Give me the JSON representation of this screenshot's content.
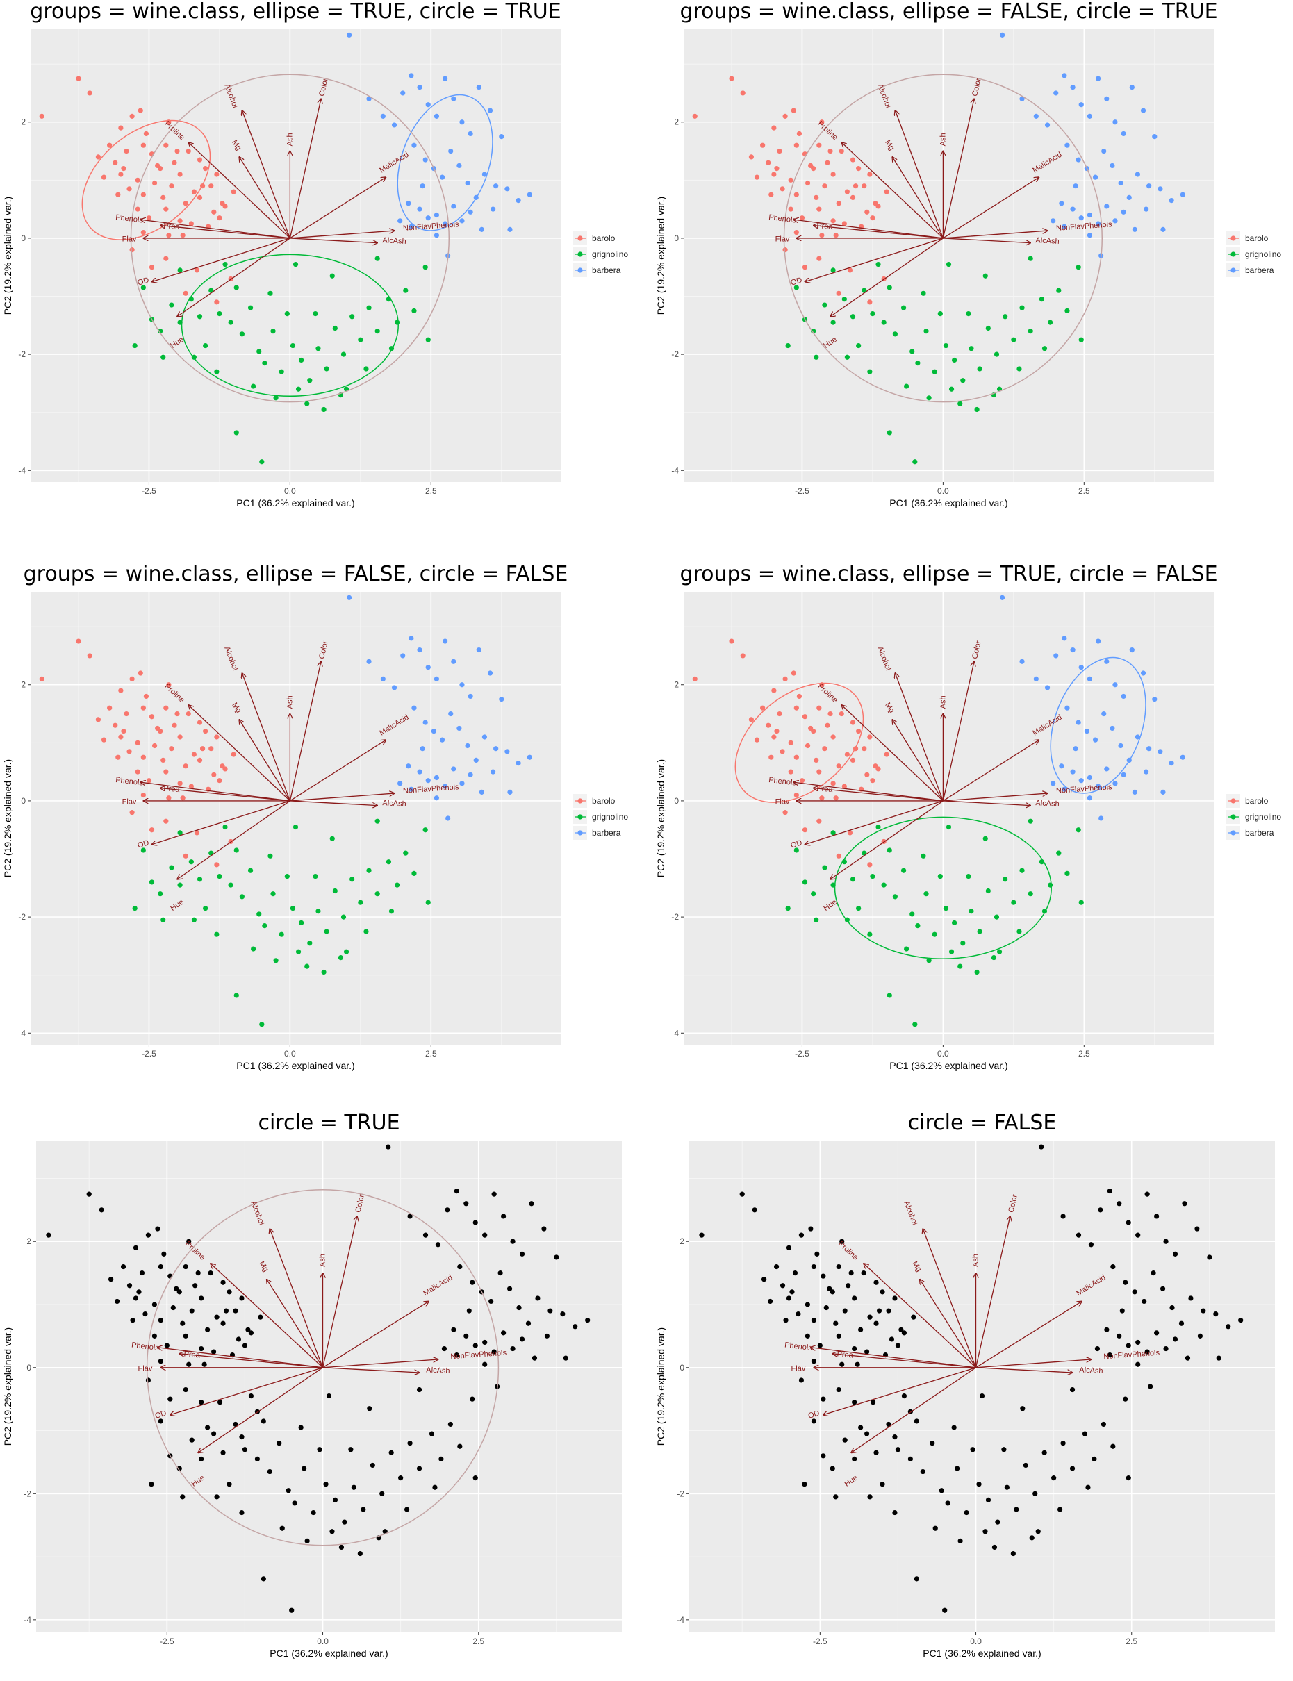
{
  "chart_data": [
    {
      "type": "scatter",
      "title": "groups = wine.class, ellipse = TRUE, circle = TRUE",
      "groups": true,
      "ellipse": true,
      "circle": true
    },
    {
      "type": "scatter",
      "title": "groups = wine.class, ellipse = FALSE, circle = TRUE",
      "groups": true,
      "ellipse": false,
      "circle": true
    },
    {
      "type": "scatter",
      "title": "groups = wine.class, ellipse = FALSE, circle = FALSE",
      "groups": true,
      "ellipse": false,
      "circle": false
    },
    {
      "type": "scatter",
      "title": "groups = wine.class, ellipse = TRUE, circle = FALSE",
      "groups": true,
      "ellipse": true,
      "circle": false
    },
    {
      "type": "scatter",
      "title": "circle = TRUE",
      "groups": false,
      "ellipse": false,
      "circle": true
    },
    {
      "type": "scatter",
      "title": "circle = FALSE",
      "groups": false,
      "ellipse": false,
      "circle": false
    }
  ],
  "shared": {
    "xlabel": "PC1 (36.2% explained var.)",
    "ylabel": "PC2 (19.2% explained var.)",
    "xlim": [
      -4.6,
      4.8
    ],
    "ylim": [
      -4.2,
      3.6
    ],
    "xticks": [
      -2.5,
      0.0,
      2.5
    ],
    "xtick_labels": [
      "-2.5",
      "0.0",
      "2.5"
    ],
    "yticks": [
      2,
      0,
      -2,
      -4
    ],
    "ytick_labels": [
      "2",
      "0",
      "-2",
      "-4"
    ],
    "grid": true,
    "legend": [
      "barolo",
      "grignolino",
      "barbera"
    ],
    "colors": {
      "barolo": "#f8766d",
      "grignolino": "#00ba38",
      "barbera": "#619cff",
      "nogroup": "#000000",
      "arrow": "#8b1a1a",
      "circle": "#c4a5a5",
      "panel_bg": "#ebebeb",
      "grid": "#ffffff"
    },
    "circle_radius": 2.82,
    "vectors": [
      {
        "name": "Alcohol",
        "x": -0.85,
        "y": 2.2,
        "lx": -1.05,
        "ly": 2.45
      },
      {
        "name": "Color",
        "x": 0.55,
        "y": 2.4,
        "lx": 0.6,
        "ly": 2.6
      },
      {
        "name": "Proline",
        "x": -1.8,
        "y": 1.65,
        "lx": -2.05,
        "ly": 1.85
      },
      {
        "name": "Mg",
        "x": -0.9,
        "y": 1.4,
        "lx": -0.95,
        "ly": 1.6
      },
      {
        "name": "Ash",
        "x": 0.0,
        "y": 1.5,
        "lx": 0.0,
        "ly": 1.7
      },
      {
        "name": "MalicAcid",
        "x": 1.7,
        "y": 1.05,
        "lx": 1.85,
        "ly": 1.3
      },
      {
        "name": "NonFlavPhenols",
        "x": 1.85,
        "y": 0.13,
        "lx": 2.5,
        "ly": 0.2
      },
      {
        "name": "AlcAsh",
        "x": 1.55,
        "y": -0.08,
        "lx": 1.85,
        "ly": -0.05
      },
      {
        "name": "Proa",
        "x": -2.3,
        "y": 0.22,
        "lx": -2.1,
        "ly": 0.2
      },
      {
        "name": "Phenols",
        "x": -2.65,
        "y": 0.32,
        "lx": -2.85,
        "ly": 0.33
      },
      {
        "name": "Flav",
        "x": -2.6,
        "y": 0.0,
        "lx": -2.85,
        "ly": -0.02
      },
      {
        "name": "OD",
        "x": -2.45,
        "y": -0.75,
        "lx": -2.6,
        "ly": -0.75
      },
      {
        "name": "Hue",
        "x": -2.0,
        "y": -1.35,
        "lx": -2.0,
        "ly": -1.8
      }
    ],
    "ellipses": [
      {
        "group": "barolo",
        "cx": -2.55,
        "cy": 1.0,
        "rx": 1.3,
        "ry": 0.82,
        "angle": -40
      },
      {
        "group": "grignolino",
        "cx": 0.0,
        "cy": -1.5,
        "rx": 1.92,
        "ry": 1.22,
        "angle": 0
      },
      {
        "group": "barbera",
        "cx": 2.75,
        "cy": 1.3,
        "rx": 1.25,
        "ry": 0.75,
        "angle": -70
      }
    ],
    "points": {
      "barolo": [
        [
          -4.4,
          2.1
        ],
        [
          -3.75,
          2.75
        ],
        [
          -3.55,
          2.5
        ],
        [
          -3.2,
          1.6
        ],
        [
          -3.1,
          1.3
        ],
        [
          -3.0,
          1.1
        ],
        [
          -2.9,
          1.5
        ],
        [
          -2.8,
          2.1
        ],
        [
          -2.6,
          1.6
        ],
        [
          -2.55,
          1.8
        ],
        [
          -2.45,
          1.45
        ],
        [
          -2.3,
          1.2
        ],
        [
          -2.2,
          1.6
        ],
        [
          -2.15,
          2.0
        ],
        [
          -2.05,
          1.3
        ],
        [
          -1.95,
          1.1
        ],
        [
          -1.8,
          1.5
        ],
        [
          -1.7,
          0.8
        ],
        [
          -1.6,
          1.35
        ],
        [
          -1.5,
          1.2
        ],
        [
          -1.4,
          0.9
        ],
        [
          -1.3,
          1.1
        ],
        [
          -1.15,
          0.55
        ],
        [
          -1.0,
          0.8
        ],
        [
          -3.3,
          1.05
        ],
        [
          -3.05,
          0.75
        ],
        [
          -2.85,
          0.85
        ],
        [
          -2.6,
          0.75
        ],
        [
          -2.4,
          0.95
        ],
        [
          -2.25,
          0.7
        ],
        [
          -2.1,
          0.9
        ],
        [
          -1.85,
          0.6
        ],
        [
          -1.6,
          0.7
        ],
        [
          -1.35,
          0.45
        ],
        [
          -2.7,
          0.5
        ],
        [
          -2.5,
          0.35
        ],
        [
          -2.2,
          0.5
        ],
        [
          -1.95,
          0.3
        ],
        [
          -1.75,
          0.25
        ],
        [
          -1.45,
          0.2
        ],
        [
          -3.4,
          1.4
        ],
        [
          -2.95,
          1.2
        ],
        [
          -2.7,
          1.0
        ],
        [
          -2.35,
          1.25
        ],
        [
          -2.0,
          1.5
        ],
        [
          -1.55,
          0.9
        ],
        [
          -1.9,
          0.05
        ],
        [
          -2.15,
          0.05
        ],
        [
          -2.6,
          0.1
        ],
        [
          -1.25,
          0.35
        ],
        [
          -2.8,
          -0.2
        ],
        [
          -2.2,
          -0.35
        ],
        [
          -1.65,
          -0.55
        ],
        [
          -1.05,
          -0.7
        ],
        [
          -1.3,
          -1.1
        ],
        [
          -1.85,
          -0.95
        ],
        [
          -2.45,
          -0.5
        ],
        [
          -3.0,
          1.9
        ],
        [
          -2.65,
          2.2
        ],
        [
          -1.2,
          0.6
        ]
      ],
      "grignolino": [
        [
          -2.75,
          -1.85
        ],
        [
          -2.45,
          -1.4
        ],
        [
          -2.3,
          -1.6
        ],
        [
          -2.1,
          -1.15
        ],
        [
          -1.95,
          -1.45
        ],
        [
          -1.75,
          -1.05
        ],
        [
          -1.6,
          -1.35
        ],
        [
          -1.4,
          -0.9
        ],
        [
          -1.25,
          -1.3
        ],
        [
          -1.05,
          -1.45
        ],
        [
          -0.95,
          -0.85
        ],
        [
          -0.85,
          -1.65
        ],
        [
          -0.7,
          -1.2
        ],
        [
          -0.55,
          -1.95
        ],
        [
          -0.45,
          -2.15
        ],
        [
          -0.3,
          -1.6
        ],
        [
          -0.15,
          -2.3
        ],
        [
          0.05,
          -1.85
        ],
        [
          0.2,
          -2.1
        ],
        [
          0.35,
          -2.45
        ],
        [
          0.5,
          -1.9
        ],
        [
          0.65,
          -2.25
        ],
        [
          0.8,
          -1.55
        ],
        [
          0.95,
          -2.0
        ],
        [
          1.1,
          -1.35
        ],
        [
          1.25,
          -1.75
        ],
        [
          1.4,
          -1.2
        ],
        [
          1.55,
          -1.6
        ],
        [
          1.75,
          -1.05
        ],
        [
          1.9,
          -1.45
        ],
        [
          2.05,
          -0.9
        ],
        [
          2.2,
          -1.25
        ],
        [
          2.45,
          -1.75
        ],
        [
          -0.65,
          -2.55
        ],
        [
          -0.25,
          -2.75
        ],
        [
          0.3,
          -2.85
        ],
        [
          0.9,
          -2.7
        ],
        [
          -1.3,
          -2.3
        ],
        [
          -1.7,
          -2.05
        ],
        [
          -0.95,
          -3.35
        ],
        [
          -0.5,
          -3.85
        ],
        [
          0.15,
          -2.6
        ],
        [
          0.6,
          -2.95
        ],
        [
          1.0,
          -2.6
        ],
        [
          -2.25,
          -2.05
        ],
        [
          -1.5,
          -1.85
        ],
        [
          -0.05,
          -1.3
        ],
        [
          0.45,
          -1.3
        ],
        [
          1.35,
          -2.25
        ],
        [
          1.8,
          -1.9
        ],
        [
          -0.35,
          -0.95
        ],
        [
          0.75,
          -0.65
        ],
        [
          -1.95,
          -0.55
        ],
        [
          -2.6,
          -0.85
        ],
        [
          1.55,
          -0.35
        ],
        [
          2.4,
          -0.5
        ],
        [
          -1.15,
          -0.45
        ],
        [
          0.1,
          -0.45
        ]
      ],
      "barbera": [
        [
          1.4,
          2.4
        ],
        [
          1.65,
          2.1
        ],
        [
          1.85,
          1.95
        ],
        [
          2.0,
          2.5
        ],
        [
          2.15,
          2.8
        ],
        [
          2.3,
          2.6
        ],
        [
          2.45,
          2.3
        ],
        [
          2.6,
          2.1
        ],
        [
          2.75,
          2.75
        ],
        [
          2.9,
          2.4
        ],
        [
          3.05,
          2.0
        ],
        [
          3.2,
          1.8
        ],
        [
          3.35,
          2.6
        ],
        [
          3.55,
          2.2
        ],
        [
          3.75,
          1.75
        ],
        [
          2.2,
          1.6
        ],
        [
          2.4,
          1.35
        ],
        [
          2.55,
          1.2
        ],
        [
          2.7,
          1.05
        ],
        [
          2.85,
          1.5
        ],
        [
          3.0,
          1.25
        ],
        [
          3.15,
          0.95
        ],
        [
          3.3,
          0.7
        ],
        [
          3.45,
          1.1
        ],
        [
          3.65,
          0.9
        ],
        [
          3.85,
          0.85
        ],
        [
          4.05,
          0.65
        ],
        [
          4.25,
          0.75
        ],
        [
          2.3,
          0.5
        ],
        [
          2.45,
          0.35
        ],
        [
          2.6,
          0.4
        ],
        [
          2.75,
          0.25
        ],
        [
          2.9,
          0.55
        ],
        [
          3.05,
          0.3
        ],
        [
          3.2,
          0.45
        ],
        [
          3.4,
          0.15
        ],
        [
          1.95,
          0.3
        ],
        [
          2.15,
          0.2
        ],
        [
          2.6,
          0.05
        ],
        [
          3.9,
          0.15
        ],
        [
          2.8,
          -0.3
        ],
        [
          1.05,
          3.5
        ],
        [
          2.1,
          0.6
        ],
        [
          3.6,
          0.5
        ],
        [
          2.35,
          0.9
        ]
      ]
    }
  }
}
